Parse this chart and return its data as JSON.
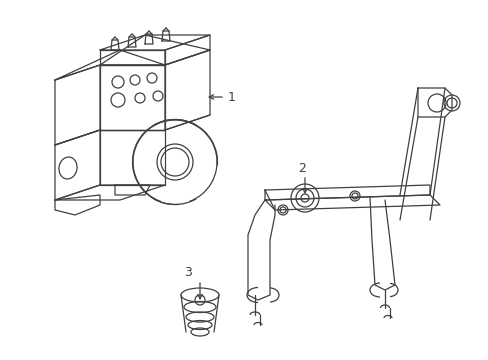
{
  "bg_color": "#ffffff",
  "line_color": "#404040",
  "line_width": 0.9,
  "label_1": "1",
  "label_2": "2",
  "label_3": "3",
  "label_fontsize": 9,
  "fig_width": 4.89,
  "fig_height": 3.6,
  "dpi": 100
}
